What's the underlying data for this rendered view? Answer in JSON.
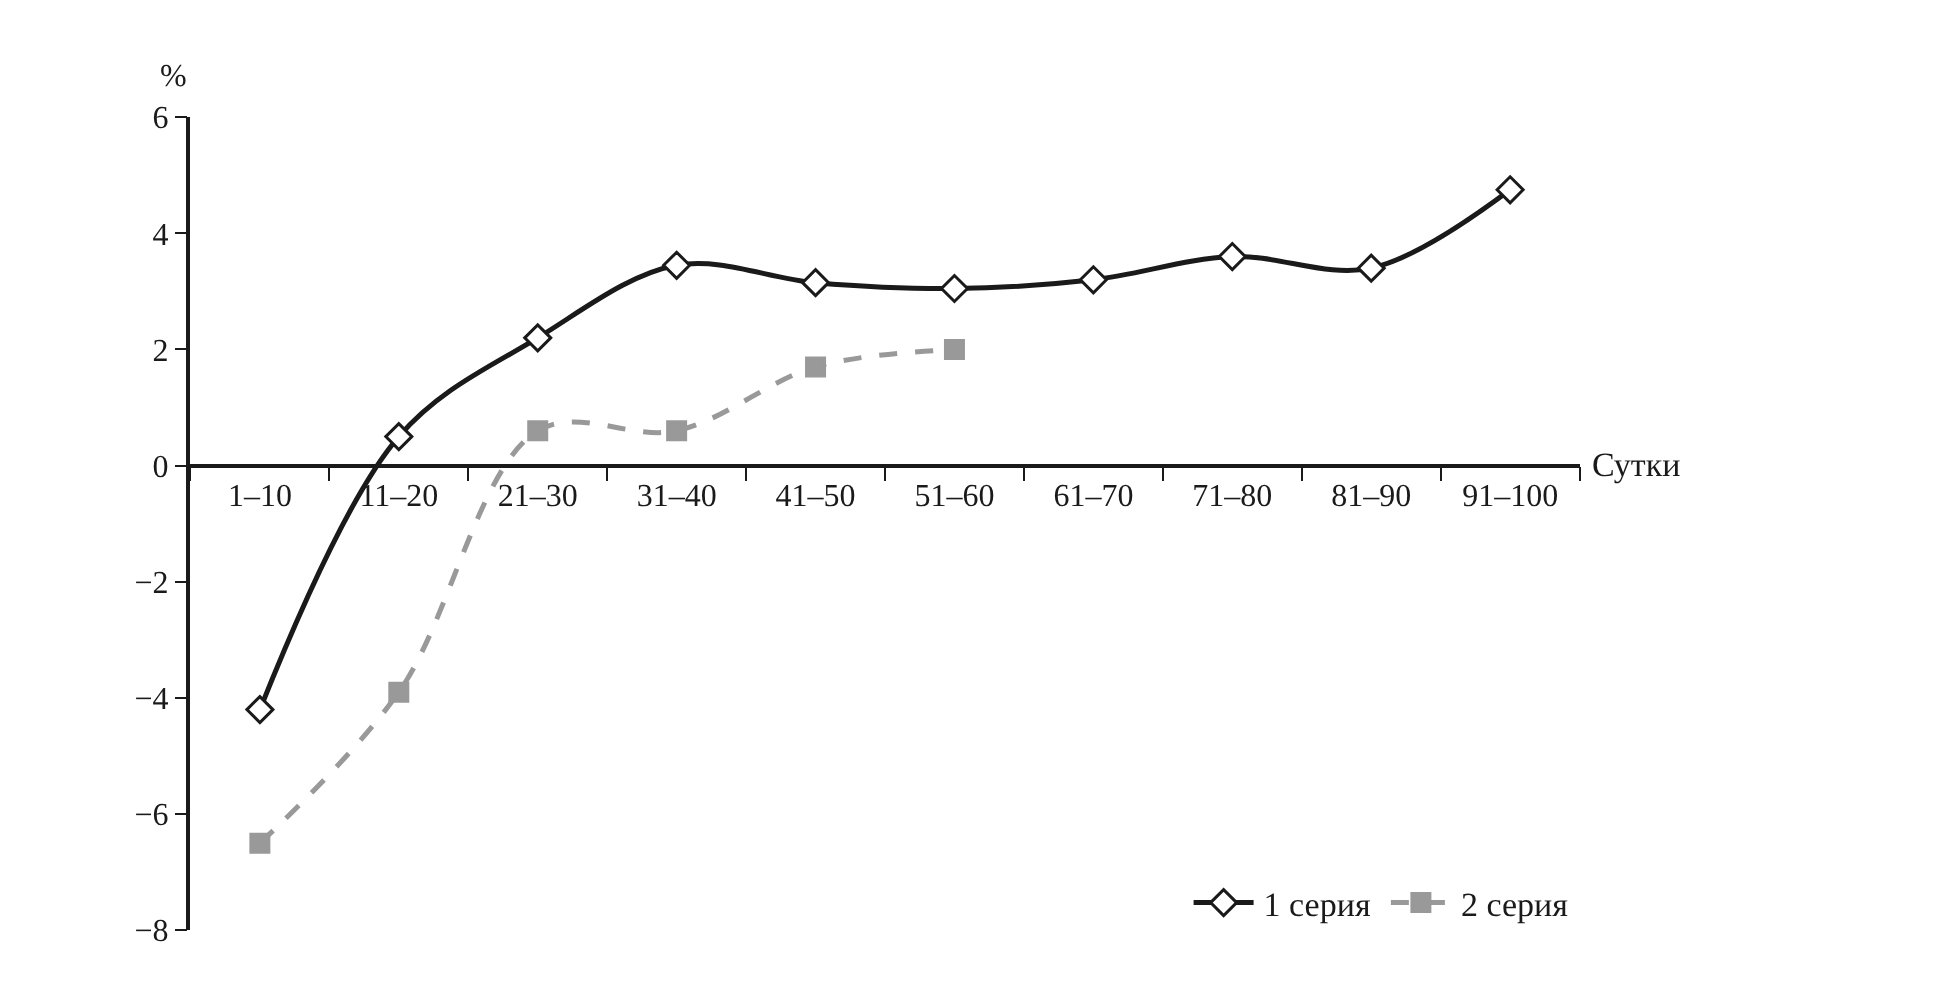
{
  "chart_data": {
    "type": "line",
    "xlabel": "Сутки",
    "ylabel": "%",
    "categories": [
      "1–10",
      "11–20",
      "21–30",
      "31–40",
      "41–50",
      "51–60",
      "61–70",
      "71–80",
      "81–90",
      "91–100"
    ],
    "series": [
      {
        "name": "1 серия",
        "color": "#1a1a1a",
        "marker": "diamond",
        "line_style": "solid",
        "values": [
          -4.2,
          0.5,
          2.2,
          3.45,
          3.15,
          3.05,
          3.2,
          3.6,
          3.4,
          4.75
        ]
      },
      {
        "name": "2 серия",
        "color": "#999999",
        "marker": "square",
        "line_style": "dashed",
        "values": [
          -6.5,
          -3.9,
          0.6,
          0.6,
          1.7,
          2.0,
          null,
          null,
          null,
          null
        ]
      }
    ],
    "ylim": [
      -8,
      6
    ],
    "yticks": [
      -8,
      -6,
      -4,
      -2,
      0,
      2,
      4,
      6
    ],
    "legend": "bottom right"
  }
}
